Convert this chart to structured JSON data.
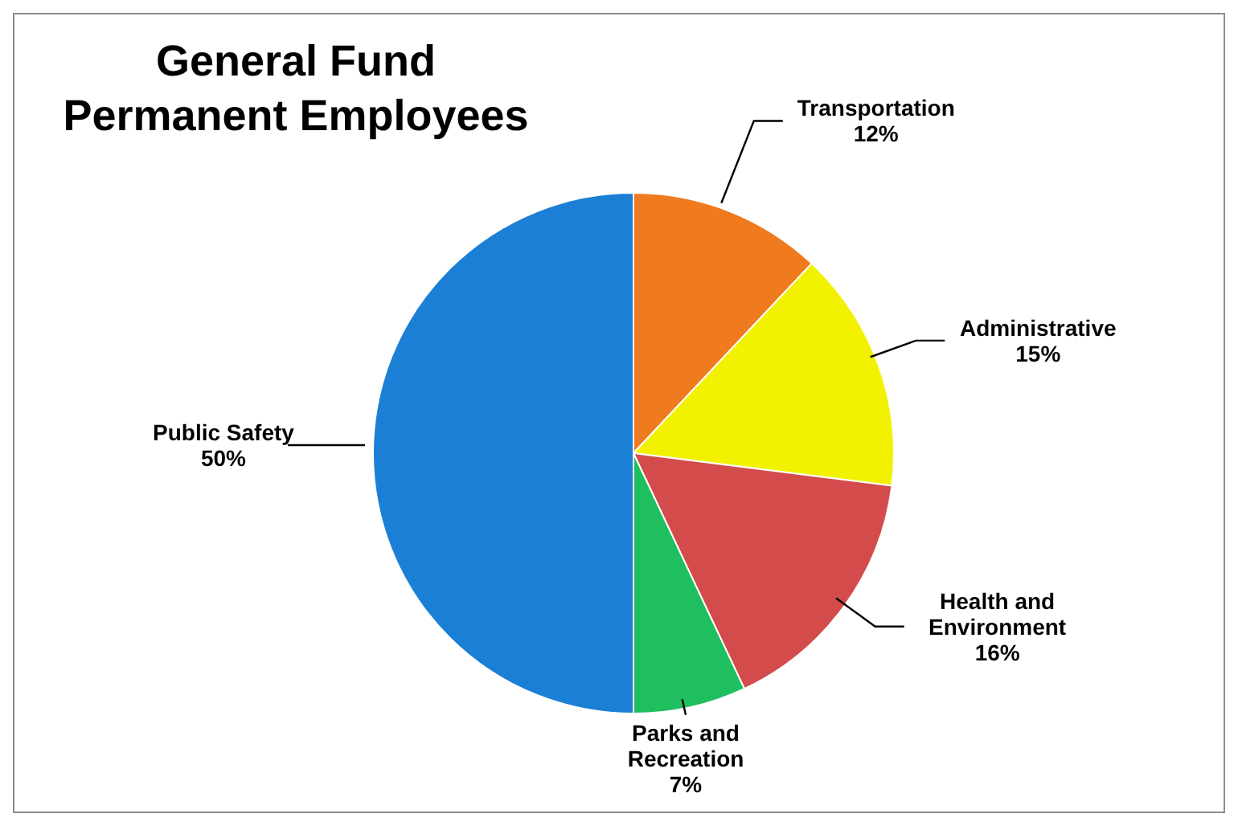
{
  "chart_data": {
    "type": "pie",
    "title": "General Fund\nPermanent Employees",
    "categories": [
      "Transportation",
      "Administrative",
      "Health and Environment",
      "Parks and Recreation",
      "Public Safety"
    ],
    "values": [
      12,
      15,
      16,
      7,
      50
    ],
    "colors": [
      "#f07a1e",
      "#f2f200",
      "#d44b4b",
      "#1fbf5f",
      "#1b7fd6"
    ],
    "value_labels": [
      "12%",
      "15%",
      "16%",
      "7%",
      "50%"
    ],
    "legend": false
  }
}
